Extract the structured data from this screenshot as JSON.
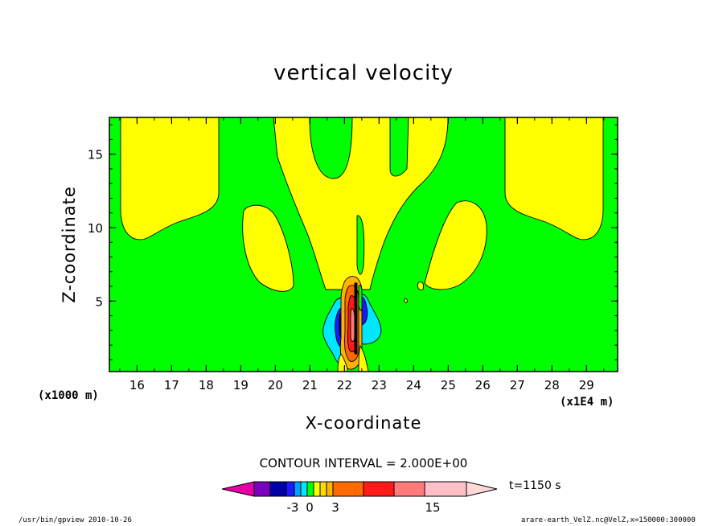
{
  "chart_data": {
    "type": "heatmap",
    "title": "vertical velocity",
    "xlabel": "X-coordinate",
    "ylabel": "Z-coordinate",
    "x_unit_label": "(x1000 m)",
    "x_secondary_unit_label": "(x1E4 m)",
    "x_ticks": [
      "16",
      "17",
      "18",
      "19",
      "20",
      "21",
      "22",
      "23",
      "24",
      "25",
      "26",
      "27",
      "28",
      "29"
    ],
    "y_ticks": [
      "5",
      "10",
      "15"
    ],
    "xlim": [
      15.2,
      29.9
    ],
    "ylim": [
      0.2,
      17.5
    ],
    "contour_interval_label": "CONTOUR INTERVAL = 2.000E+00",
    "contour_interval": 2.0,
    "time_label": "t=1150 s",
    "colorbar": {
      "tick_labels": [
        "-3",
        "0",
        "3",
        "15"
      ],
      "colors": [
        "#e600a8",
        "#7b00c0",
        "#0000a8",
        "#1a1aff",
        "#00a0ff",
        "#00e6ff",
        "#00ff00",
        "#ffff00",
        "#ffdc00",
        "#ffb400",
        "#ff6a00",
        "#ff1a1a",
        "#ff7a7a",
        "#ffbfc7",
        "#ffd8d8"
      ]
    },
    "background_color": "#00ff00",
    "positive_color": "#ffff00",
    "line_color": "#000000"
  },
  "footer": {
    "left": "/usr/bin/gpview  2010-10-26",
    "right": "arare-earth_VelZ.nc@VelZ,x=150000:300000"
  }
}
